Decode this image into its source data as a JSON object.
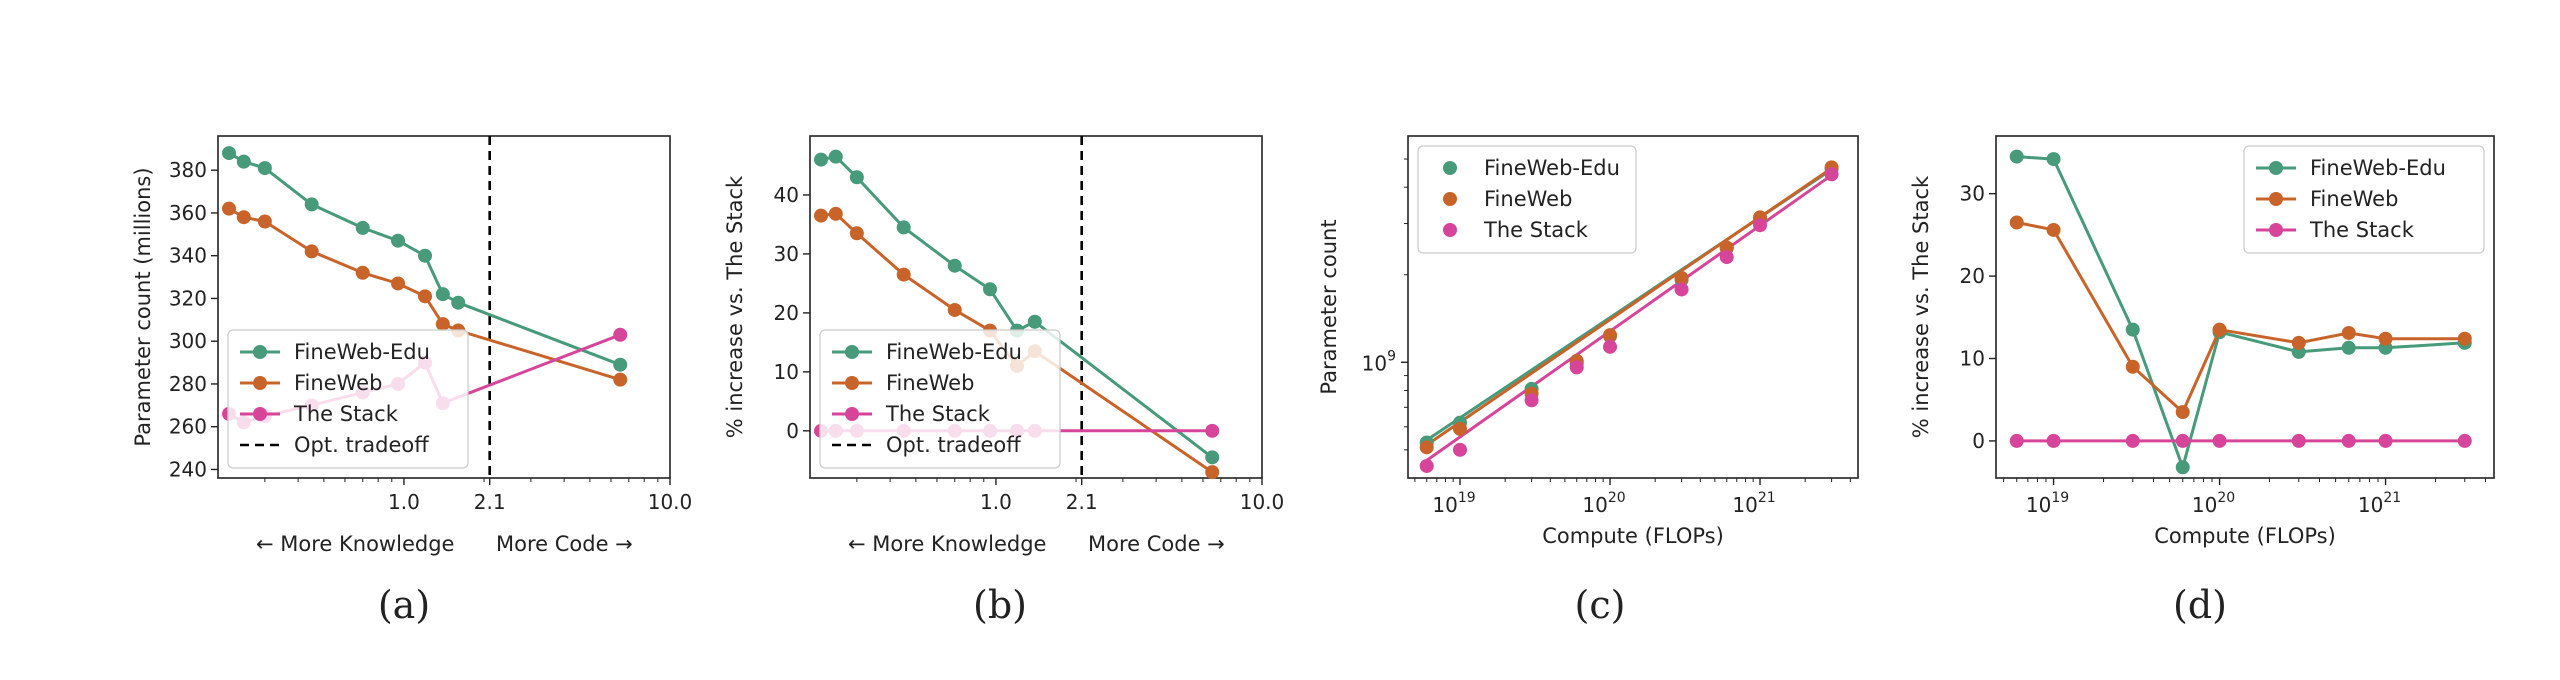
{
  "colors": {
    "edu": "#479a7a",
    "web": "#c8642a",
    "stack": "#d6459a",
    "tradeoff": "#000000"
  },
  "chart_data": [
    {
      "id": "a",
      "caption": "(a)",
      "type": "line",
      "xscale": "log",
      "xlim": [
        0.2,
        10.0
      ],
      "ylim": [
        236,
        396
      ],
      "x_ticks": [
        {
          "v": 1.0,
          "label": "1.0"
        },
        {
          "v": 2.1,
          "label": "2.1"
        },
        {
          "v": 10.0,
          "label": "10.0"
        }
      ],
      "y_ticks": [
        {
          "v": 240,
          "label": "240"
        },
        {
          "v": 260,
          "label": "260"
        },
        {
          "v": 280,
          "label": "280"
        },
        {
          "v": 300,
          "label": "300"
        },
        {
          "v": 320,
          "label": "320"
        },
        {
          "v": 340,
          "label": "340"
        },
        {
          "v": 360,
          "label": "360"
        },
        {
          "v": 380,
          "label": "380"
        }
      ],
      "ylabel": "Parameter count (millions)",
      "xlabel_left": "← More Knowledge",
      "xlabel_right": "More Code →",
      "vline": 2.1,
      "legend": {
        "position": "lower-left",
        "entries": [
          {
            "label": "FineWeb-Edu",
            "series": "edu",
            "kind": "line"
          },
          {
            "label": "FineWeb",
            "series": "web",
            "kind": "line"
          },
          {
            "label": "The Stack",
            "series": "stack",
            "kind": "line"
          },
          {
            "label": "Opt. tradeoff",
            "series": "tradeoff",
            "kind": "dashed"
          }
        ]
      },
      "series": [
        {
          "key": "edu",
          "x": [
            0.22,
            0.25,
            0.3,
            0.45,
            0.7,
            0.95,
            1.2,
            1.4,
            1.6,
            6.5
          ],
          "y": [
            388,
            384,
            381,
            364,
            353,
            347,
            340,
            322,
            318,
            289
          ]
        },
        {
          "key": "web",
          "x": [
            0.22,
            0.25,
            0.3,
            0.45,
            0.7,
            0.95,
            1.2,
            1.4,
            1.6,
            6.5
          ],
          "y": [
            362,
            358,
            356,
            342,
            332,
            327,
            321,
            308,
            305,
            282
          ]
        },
        {
          "key": "stack",
          "x": [
            0.22,
            0.25,
            0.3,
            0.45,
            0.7,
            0.95,
            1.2,
            1.4,
            6.5
          ],
          "y": [
            266,
            262,
            265,
            270,
            276,
            280,
            290,
            271,
            303
          ]
        }
      ]
    },
    {
      "id": "b",
      "caption": "(b)",
      "type": "line",
      "xscale": "log",
      "xlim": [
        0.2,
        10.0
      ],
      "ylim": [
        -8,
        50
      ],
      "x_ticks": [
        {
          "v": 1.0,
          "label": "1.0"
        },
        {
          "v": 2.1,
          "label": "2.1"
        },
        {
          "v": 10.0,
          "label": "10.0"
        }
      ],
      "y_ticks": [
        {
          "v": 0,
          "label": "0"
        },
        {
          "v": 10,
          "label": "10"
        },
        {
          "v": 20,
          "label": "20"
        },
        {
          "v": 30,
          "label": "30"
        },
        {
          "v": 40,
          "label": "40"
        }
      ],
      "ylabel": "% increase vs. The Stack",
      "xlabel_left": "← More Knowledge",
      "xlabel_right": "More Code →",
      "vline": 2.1,
      "legend": {
        "position": "lower-left",
        "entries": [
          {
            "label": "FineWeb-Edu",
            "series": "edu",
            "kind": "line"
          },
          {
            "label": "FineWeb",
            "series": "web",
            "kind": "line"
          },
          {
            "label": "The Stack",
            "series": "stack",
            "kind": "line"
          },
          {
            "label": "Opt. tradeoff",
            "series": "tradeoff",
            "kind": "dashed"
          }
        ]
      },
      "series": [
        {
          "key": "edu",
          "x": [
            0.22,
            0.25,
            0.3,
            0.45,
            0.7,
            0.95,
            1.2,
            1.4,
            6.5
          ],
          "y": [
            46,
            46.5,
            43,
            34.5,
            28,
            24,
            17,
            18.5,
            -4.5
          ]
        },
        {
          "key": "web",
          "x": [
            0.22,
            0.25,
            0.3,
            0.45,
            0.7,
            0.95,
            1.2,
            1.4,
            6.5
          ],
          "y": [
            36.5,
            36.8,
            33.5,
            26.5,
            20.5,
            17,
            11,
            13.5,
            -7
          ]
        },
        {
          "key": "stack",
          "x": [
            0.22,
            0.25,
            0.3,
            0.45,
            0.7,
            0.95,
            1.2,
            1.4,
            6.5
          ],
          "y": [
            0,
            0,
            0,
            0,
            0,
            0,
            0,
            0,
            0
          ]
        }
      ]
    },
    {
      "id": "c",
      "caption": "(c)",
      "type": "scatter",
      "xscale": "log",
      "yscale": "log",
      "xlim": [
        4.5e+18,
        4.5e+21
      ],
      "ylim": [
        400000000,
        6000000000
      ],
      "x_ticks": [
        {
          "v": 1e+19,
          "base": "10",
          "exp": "19"
        },
        {
          "v": 1e+20,
          "base": "10",
          "exp": "20"
        },
        {
          "v": 1e+21,
          "base": "10",
          "exp": "21"
        }
      ],
      "y_ticks": [
        {
          "v": 1000000000,
          "base": "10",
          "exp": "9"
        }
      ],
      "xlabel": "Compute (FLOPs)",
      "ylabel": "Parameter count",
      "legend": {
        "position": "upper-left",
        "entries": [
          {
            "label": "FineWeb-Edu",
            "series": "edu",
            "kind": "marker"
          },
          {
            "label": "FineWeb",
            "series": "web",
            "kind": "marker"
          },
          {
            "label": "The Stack",
            "series": "stack",
            "kind": "marker"
          }
        ]
      },
      "series": [
        {
          "key": "edu",
          "x": [
            6e+18,
            1e+19,
            3e+19,
            6e+19,
            1e+20,
            3e+20,
            6e+20,
            1e+21,
            3e+21
          ],
          "y": [
            530000000,
            620000000,
            810000000,
            990000000,
            1230000000,
            1920000000,
            2470000000,
            3120000000,
            4620000000
          ]
        },
        {
          "key": "web",
          "x": [
            6e+18,
            1e+19,
            3e+19,
            6e+19,
            1e+20,
            3e+20,
            6e+20,
            1e+21,
            3e+21
          ],
          "y": [
            510000000,
            590000000,
            780000000,
            1010000000,
            1240000000,
            1950000000,
            2480000000,
            3150000000,
            4680000000
          ]
        },
        {
          "key": "stack",
          "x": [
            6e+18,
            1e+19,
            3e+19,
            6e+19,
            1e+20,
            3e+20,
            6e+20,
            1e+21,
            3e+21
          ],
          "y": [
            440000000,
            500000000,
            740000000,
            960000000,
            1130000000,
            1780000000,
            2300000000,
            2960000000,
            4430000000
          ]
        }
      ],
      "fit_lines": [
        {
          "key": "edu",
          "x": [
            6e+18,
            3e+21
          ],
          "y": [
            540000000,
            4600000000
          ]
        },
        {
          "key": "web",
          "x": [
            6e+18,
            3e+21
          ],
          "y": [
            520000000,
            4650000000
          ]
        },
        {
          "key": "stack",
          "x": [
            6e+18,
            3e+21
          ],
          "y": [
            460000000,
            4400000000
          ]
        }
      ]
    },
    {
      "id": "d",
      "caption": "(d)",
      "type": "line",
      "xscale": "log",
      "xlim": [
        4.5e+18,
        4.5e+21
      ],
      "ylim": [
        -4.5,
        37
      ],
      "x_ticks": [
        {
          "v": 1e+19,
          "base": "10",
          "exp": "19"
        },
        {
          "v": 1e+20,
          "base": "10",
          "exp": "20"
        },
        {
          "v": 1e+21,
          "base": "10",
          "exp": "21"
        }
      ],
      "y_ticks": [
        {
          "v": 0,
          "label": "0"
        },
        {
          "v": 10,
          "label": "10"
        },
        {
          "v": 20,
          "label": "20"
        },
        {
          "v": 30,
          "label": "30"
        }
      ],
      "xlabel": "Compute (FLOPs)",
      "ylabel": "% increase vs. The Stack",
      "legend": {
        "position": "upper-right",
        "entries": [
          {
            "label": "FineWeb-Edu",
            "series": "edu",
            "kind": "line"
          },
          {
            "label": "FineWeb",
            "series": "web",
            "kind": "line"
          },
          {
            "label": "The Stack",
            "series": "stack",
            "kind": "line"
          }
        ]
      },
      "series": [
        {
          "key": "edu",
          "x": [
            6e+18,
            1e+19,
            3e+19,
            6e+19,
            1e+20,
            3e+20,
            6e+20,
            1e+21,
            3e+21
          ],
          "y": [
            34.5,
            34.2,
            13.5,
            -3.2,
            13.2,
            10.8,
            11.3,
            11.3,
            11.9
          ]
        },
        {
          "key": "web",
          "x": [
            6e+18,
            1e+19,
            3e+19,
            6e+19,
            1e+20,
            3e+20,
            6e+20,
            1e+21,
            3e+21
          ],
          "y": [
            26.5,
            25.6,
            9,
            3.5,
            13.5,
            11.9,
            13.1,
            12.4,
            12.4
          ]
        },
        {
          "key": "stack",
          "x": [
            6e+18,
            1e+19,
            3e+19,
            6e+19,
            1e+20,
            3e+20,
            6e+20,
            1e+21,
            3e+21
          ],
          "y": [
            0,
            0,
            0,
            0,
            0,
            0,
            0,
            0,
            0
          ]
        }
      ]
    }
  ]
}
